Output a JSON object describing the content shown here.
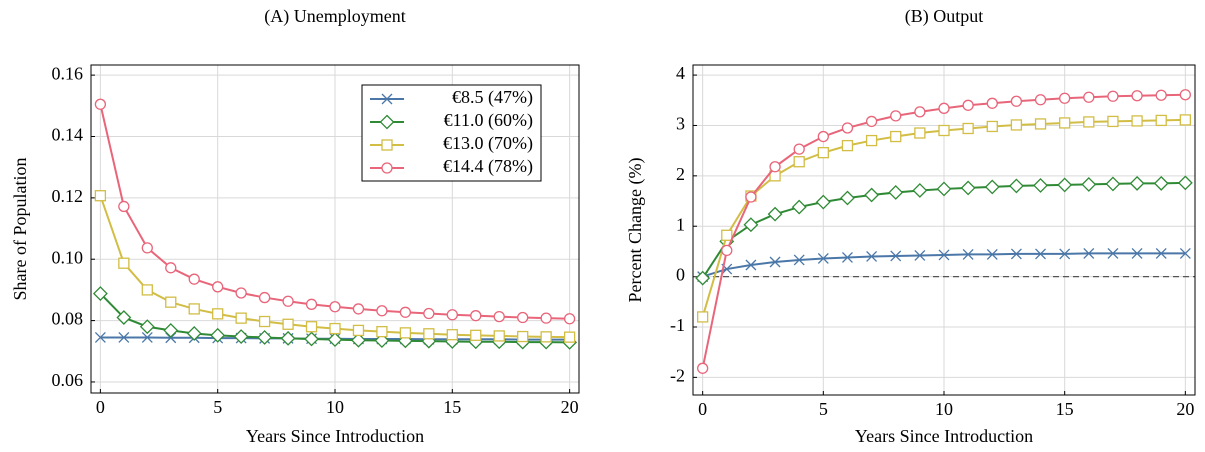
{
  "chart_data": [
    {
      "type": "line",
      "title": "(A) Unemployment",
      "x_label": "Years Since Introduction",
      "y_label": "Share of Population",
      "x": [
        0,
        1,
        2,
        3,
        4,
        5,
        6,
        7,
        8,
        9,
        10,
        11,
        12,
        13,
        14,
        15,
        16,
        17,
        18,
        19,
        20
      ],
      "xlim": [
        -0.4,
        20.4
      ],
      "xticks": [
        0,
        5,
        10,
        15,
        20
      ],
      "ylim": [
        0.0564,
        0.1633
      ],
      "yticks": [
        0.06,
        0.08,
        {
          "value": 0.1,
          "label": "0.10"
        },
        0.12,
        0.14,
        0.16
      ],
      "grid": true,
      "legend": "upper right",
      "series": [
        {
          "name": "€8.5 (47%)",
          "color": "#4a77a8",
          "marker": "x",
          "values": [
            0.0745,
            0.0745,
            0.0745,
            0.0744,
            0.0744,
            0.0743,
            0.0743,
            0.0742,
            0.0742,
            0.0741,
            0.0741,
            0.074,
            0.074,
            0.074,
            0.0739,
            0.0739,
            0.0739,
            0.0739,
            0.0738,
            0.0738,
            0.0738
          ]
        },
        {
          "name": "€11.0 (60%)",
          "color": "#2f8a35",
          "marker": "diamond",
          "values": [
            0.0888,
            0.081,
            0.078,
            0.0768,
            0.0758,
            0.0752,
            0.0748,
            0.0745,
            0.0742,
            0.074,
            0.0738,
            0.0736,
            0.0735,
            0.0734,
            0.0733,
            0.0732,
            0.0731,
            0.0731,
            0.073,
            0.073,
            0.0729
          ]
        },
        {
          "name": "€13.0 (70%)",
          "color": "#d2bd45",
          "marker": "square",
          "values": [
            0.1207,
            0.0987,
            0.09,
            0.086,
            0.0838,
            0.0822,
            0.0808,
            0.0797,
            0.0788,
            0.078,
            0.0774,
            0.0768,
            0.0764,
            0.076,
            0.0757,
            0.0754,
            0.0752,
            0.075,
            0.0748,
            0.0747,
            0.0746
          ]
        },
        {
          "name": "€14.4 (78%)",
          "color": "#e8657a",
          "marker": "circle",
          "values": [
            0.1505,
            0.1172,
            0.1037,
            0.0972,
            0.0935,
            0.091,
            0.089,
            0.0875,
            0.0863,
            0.0853,
            0.0845,
            0.0838,
            0.0832,
            0.0827,
            0.0823,
            0.0819,
            0.0816,
            0.0813,
            0.081,
            0.0808,
            0.0806
          ]
        }
      ]
    },
    {
      "type": "line",
      "title": "(B) Output",
      "x_label": "Years Since Introduction",
      "y_label": "Percent Change (%)",
      "x": [
        0,
        1,
        2,
        3,
        4,
        5,
        6,
        7,
        8,
        9,
        10,
        11,
        12,
        13,
        14,
        15,
        16,
        17,
        18,
        19,
        20
      ],
      "xlim": [
        -0.4,
        20.4
      ],
      "xticks": [
        0,
        5,
        10,
        15,
        20
      ],
      "ylim": [
        -2.35,
        4.2
      ],
      "yticks": [
        -2,
        -1,
        0,
        1,
        2,
        3,
        4
      ],
      "grid": true,
      "hline": 0,
      "series": [
        {
          "color": "#4a77a8",
          "marker": "x",
          "values": [
            0,
            0.15,
            0.23,
            0.29,
            0.33,
            0.36,
            0.38,
            0.4,
            0.41,
            0.42,
            0.43,
            0.44,
            0.44,
            0.45,
            0.45,
            0.45,
            0.46,
            0.46,
            0.46,
            0.46,
            0.46
          ]
        },
        {
          "color": "#2f8a35",
          "marker": "diamond",
          "values": [
            -0.03,
            0.7,
            1.03,
            1.24,
            1.38,
            1.48,
            1.56,
            1.62,
            1.67,
            1.71,
            1.74,
            1.76,
            1.78,
            1.8,
            1.81,
            1.82,
            1.83,
            1.84,
            1.85,
            1.85,
            1.86
          ]
        },
        {
          "color": "#d2bd45",
          "marker": "square",
          "values": [
            -0.8,
            0.82,
            1.6,
            2.0,
            2.28,
            2.46,
            2.6,
            2.7,
            2.78,
            2.85,
            2.9,
            2.94,
            2.98,
            3.01,
            3.03,
            3.05,
            3.07,
            3.08,
            3.09,
            3.1,
            3.11
          ]
        },
        {
          "color": "#e8657a",
          "marker": "circle",
          "values": [
            -1.82,
            0.52,
            1.58,
            2.18,
            2.53,
            2.78,
            2.95,
            3.08,
            3.19,
            3.27,
            3.34,
            3.4,
            3.44,
            3.48,
            3.51,
            3.54,
            3.56,
            3.58,
            3.59,
            3.6,
            3.61
          ]
        }
      ]
    }
  ]
}
